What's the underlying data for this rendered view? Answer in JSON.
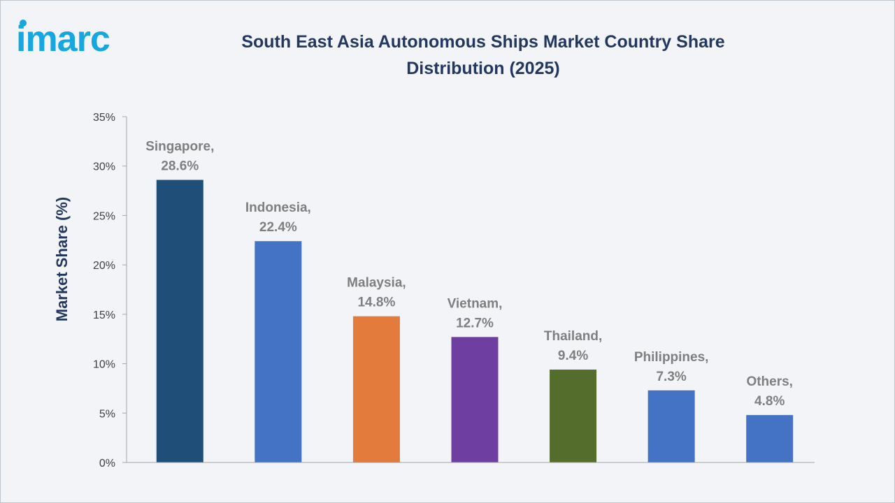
{
  "logo": {
    "text": "imarc",
    "color": "#16a6e0"
  },
  "chart_data": {
    "type": "bar",
    "title": "South East Asia Autonomous Ships Market Country Share Distribution (2025)",
    "xlabel": "",
    "ylabel": "Market Share (%)",
    "ylim": [
      0,
      35
    ],
    "yticks": [
      0,
      5,
      10,
      15,
      20,
      25,
      30,
      35
    ],
    "ytick_format": "{v}%",
    "grid": false,
    "categories": [
      "Singapore",
      "Indonesia",
      "Malaysia",
      "Vietnam",
      "Thailand",
      "Philippines",
      "Others"
    ],
    "values": [
      28.6,
      22.4,
      14.8,
      12.7,
      9.4,
      7.3,
      4.8
    ],
    "data_labels": [
      [
        "Singapore,",
        "28.6%"
      ],
      [
        "Indonesia,",
        "22.4%"
      ],
      [
        "Malaysia,",
        "14.8%"
      ],
      [
        "Vietnam,",
        "12.7%"
      ],
      [
        "Thailand,",
        "9.4%"
      ],
      [
        "Philippines,",
        "7.3%"
      ],
      [
        "Others,",
        "4.8%"
      ]
    ],
    "colors": [
      "#1f4e79",
      "#4472c4",
      "#e27b3b",
      "#6f3ea1",
      "#546d2d",
      "#4472c4",
      "#4472c4"
    ]
  }
}
